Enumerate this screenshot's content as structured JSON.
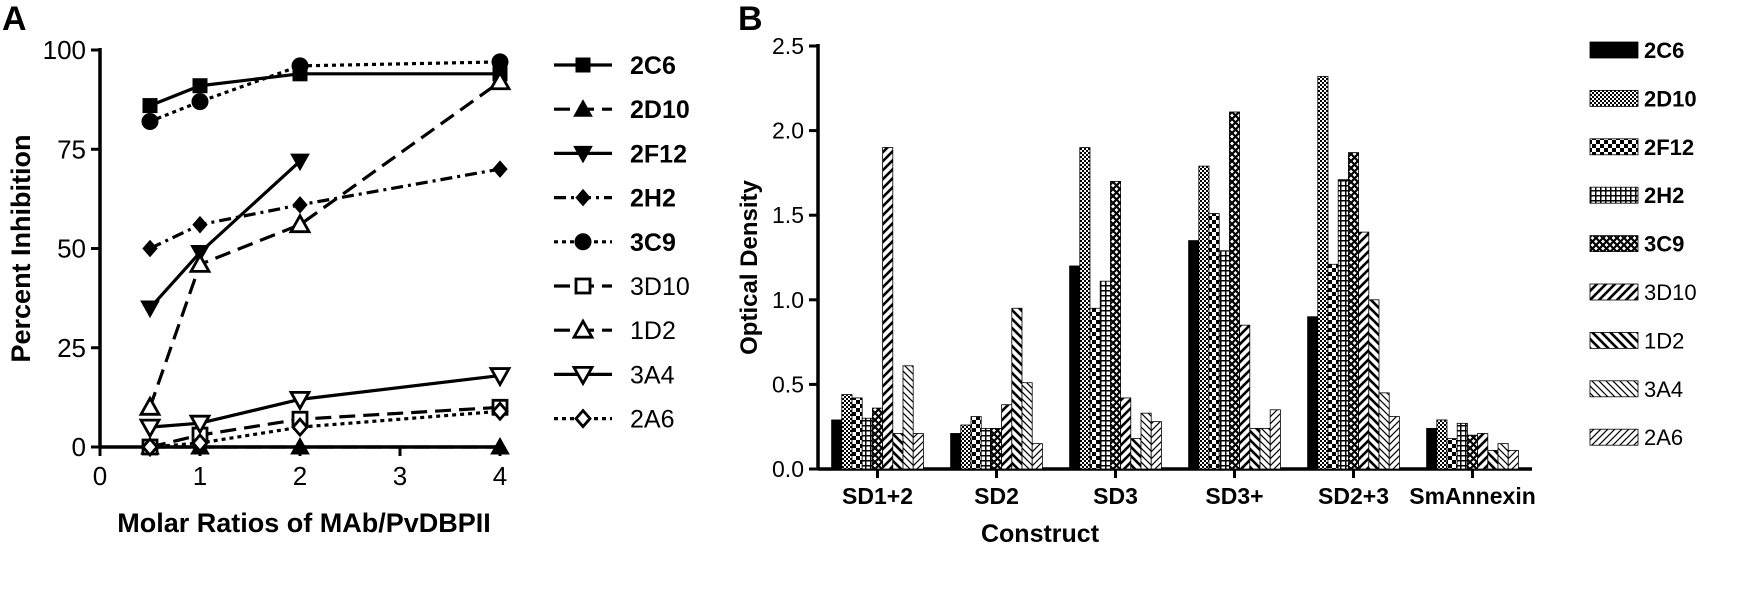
{
  "panels": [
    {
      "label": "A"
    },
    {
      "label": "B"
    }
  ],
  "chart_data": [
    {
      "type": "line",
      "panel": "A",
      "xlabel": "Molar Ratios of MAb/PvDBPII",
      "ylabel": "Percent Inhibition",
      "xticks": [
        "0",
        "1",
        "2",
        "3",
        "4"
      ],
      "yticks": [
        "0",
        "25",
        "50",
        "75",
        "100"
      ],
      "xlim": [
        0,
        4
      ],
      "ylim": [
        0,
        100
      ],
      "x_scale_note": "points plotted at x = 0.5, 1, 2, 4",
      "legend_position": "right",
      "series": [
        {
          "name": "2C6",
          "bold": true,
          "dash": "solid",
          "marker": "square",
          "x": [
            0.5,
            1,
            2,
            4
          ],
          "y": [
            86,
            91,
            94,
            94
          ]
        },
        {
          "name": "2D10",
          "bold": true,
          "dash": "long-dash",
          "marker": "triangle-up",
          "x": [
            0.5,
            1,
            2,
            4
          ],
          "y": [
            0,
            0,
            0,
            0
          ]
        },
        {
          "name": "2F12",
          "bold": true,
          "dash": "solid",
          "marker": "triangle-down",
          "x": [
            0.5,
            1,
            2
          ],
          "y": [
            35,
            49,
            72
          ]
        },
        {
          "name": "2H2",
          "bold": true,
          "dash": "dash-dot",
          "marker": "diamond",
          "x": [
            0.5,
            1,
            2,
            4
          ],
          "y": [
            50,
            56,
            61,
            70
          ]
        },
        {
          "name": "3C9",
          "bold": true,
          "dash": "dotted",
          "marker": "circle",
          "x": [
            0.5,
            1,
            2,
            4
          ],
          "y": [
            82,
            87,
            96,
            97
          ]
        },
        {
          "name": "3D10",
          "bold": false,
          "dash": "long-dash",
          "marker": "square-open",
          "x": [
            0.5,
            1,
            2,
            4
          ],
          "y": [
            0,
            3,
            7,
            10
          ]
        },
        {
          "name": "1D2",
          "bold": false,
          "dash": "long-dash",
          "marker": "triangle-up-open",
          "x": [
            0.5,
            1,
            2,
            4
          ],
          "y": [
            10,
            46,
            56,
            92
          ]
        },
        {
          "name": "3A4",
          "bold": false,
          "dash": "solid",
          "marker": "triangle-down-open",
          "x": [
            0.5,
            1,
            2,
            4
          ],
          "y": [
            5,
            6,
            12,
            18
          ]
        },
        {
          "name": "2A6",
          "bold": false,
          "dash": "dotted",
          "marker": "diamond-open",
          "x": [
            0.5,
            1,
            2,
            4
          ],
          "y": [
            0,
            1,
            5,
            9
          ]
        }
      ]
    },
    {
      "type": "bar",
      "panel": "B",
      "xlabel": "Construct",
      "ylabel": "Optical Density",
      "categories": [
        "SD1+2",
        "SD2",
        "SD3",
        "SD3+",
        "SD2+3",
        "SmAnnexin"
      ],
      "yticks": [
        "0.0",
        "0.5",
        "1.0",
        "1.5",
        "2.0",
        "2.5"
      ],
      "ylim": [
        0,
        2.5
      ],
      "legend_position": "right",
      "series": [
        {
          "name": "2C6",
          "bold": true,
          "pattern": "solid",
          "values": [
            0.29,
            0.21,
            1.2,
            1.35,
            0.9,
            0.24
          ]
        },
        {
          "name": "2D10",
          "bold": true,
          "pattern": "dots",
          "values": [
            0.44,
            0.26,
            1.9,
            1.79,
            2.32,
            0.29
          ]
        },
        {
          "name": "2F12",
          "bold": true,
          "pattern": "checker",
          "values": [
            0.42,
            0.31,
            0.95,
            1.51,
            1.21,
            0.18
          ]
        },
        {
          "name": "2H2",
          "bold": true,
          "pattern": "grid",
          "values": [
            0.3,
            0.24,
            1.11,
            1.29,
            1.71,
            0.27
          ]
        },
        {
          "name": "3C9",
          "bold": true,
          "pattern": "crosshatch",
          "values": [
            0.36,
            0.24,
            1.7,
            2.11,
            1.87,
            0.2
          ]
        },
        {
          "name": "3D10",
          "bold": false,
          "pattern": "diag-up",
          "values": [
            1.9,
            0.38,
            0.42,
            0.85,
            1.4,
            0.21
          ]
        },
        {
          "name": "1D2",
          "bold": false,
          "pattern": "diag-down",
          "values": [
            0.21,
            0.95,
            0.18,
            0.24,
            1.0,
            0.11
          ]
        },
        {
          "name": "3A4",
          "bold": false,
          "pattern": "diag-down-thin",
          "values": [
            0.61,
            0.51,
            0.33,
            0.24,
            0.45,
            0.15
          ]
        },
        {
          "name": "2A6",
          "bold": false,
          "pattern": "diag-up-thin",
          "values": [
            0.21,
            0.15,
            0.28,
            0.35,
            0.31,
            0.11
          ]
        }
      ]
    }
  ]
}
